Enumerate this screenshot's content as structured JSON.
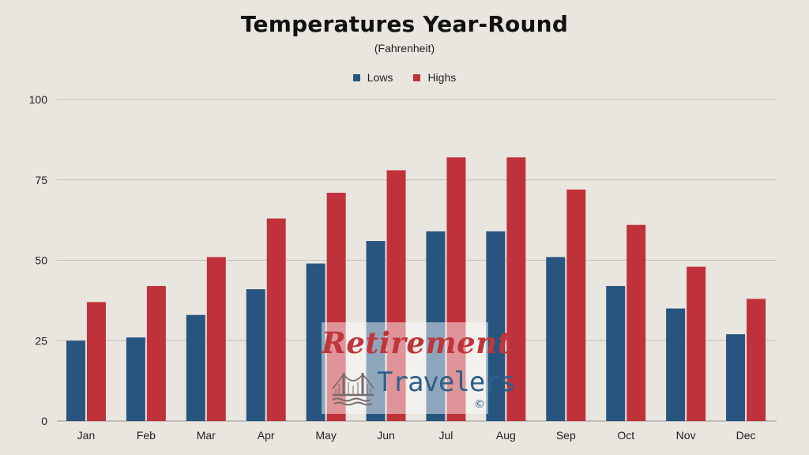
{
  "chart_data": {
    "type": "bar",
    "title": "Temperatures Year-Round",
    "subtitle": "(Fahrenheit)",
    "categories": [
      "Jan",
      "Feb",
      "Mar",
      "Apr",
      "May",
      "Jun",
      "Jul",
      "Aug",
      "Sep",
      "Oct",
      "Nov",
      "Dec"
    ],
    "series": [
      {
        "name": "Lows",
        "color": "#27557f",
        "values": [
          25,
          26,
          33,
          41,
          49,
          56,
          59,
          59,
          51,
          42,
          35,
          27
        ]
      },
      {
        "name": "Highs",
        "color": "#c0323a",
        "values": [
          37,
          42,
          51,
          63,
          71,
          78,
          82,
          82,
          72,
          61,
          48,
          38
        ]
      }
    ],
    "ylim": [
      0,
      100
    ],
    "yticks": [
      0,
      25,
      50,
      75,
      100
    ],
    "grid": true,
    "legend_position": "top-center",
    "xlabel": "",
    "ylabel": ""
  },
  "watermark": {
    "line1": "Retirement",
    "line2": "Travelers",
    "copyright": "©"
  }
}
